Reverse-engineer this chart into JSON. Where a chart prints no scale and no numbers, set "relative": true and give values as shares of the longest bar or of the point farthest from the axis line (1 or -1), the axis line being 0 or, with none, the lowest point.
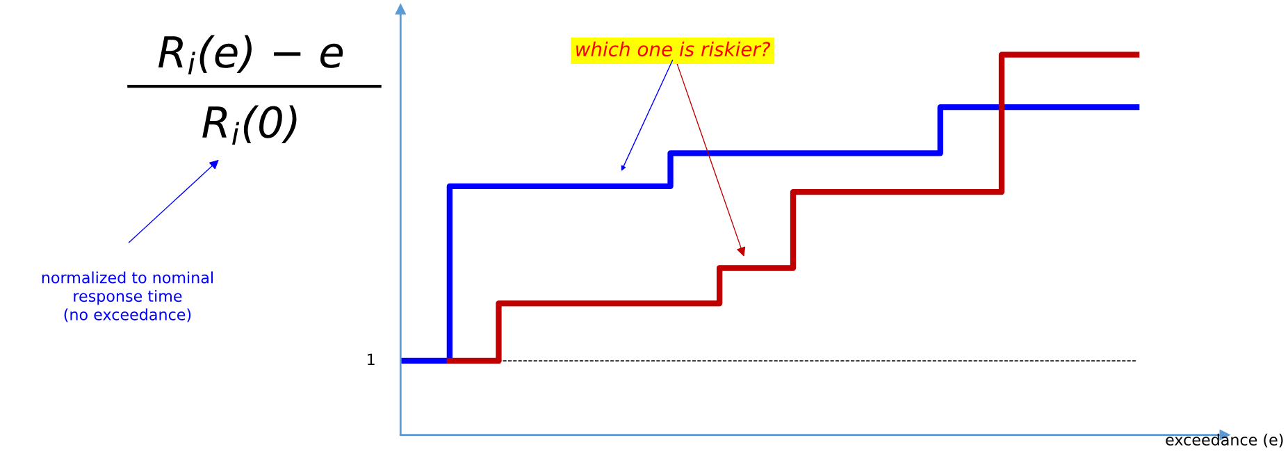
{
  "chart_data": {
    "type": "step",
    "relative": true,
    "ylabel": "R$_{i}$(e) − e\nR$_{i}$(0)",
    "xlabel": "exceedance (e)",
    "categories": [
      null,
      null,
      null,
      null,
      null,
      null,
      null,
      null,
      null,
      null,
      null,
      null,
      null,
      null,
      null,
      null,
      null,
      null,
      null,
      null,
      null,
      null,
      null,
      null,
      null,
      null,
      null,
      null,
      null,
      null,
      null,
      null,
      null,
      null,
      null,
      null,
      null,
      null,
      null,
      null,
      null,
      null,
      null,
      null,
      null,
      null,
      null,
      null,
      null,
      null,
      null,
      null,
      null,
      null,
      null,
      null,
      null,
      null,
      null,
      null,
      null
    ],
    "series": [
      {
        "color": "#0000ff",
        "values": [
          0.195,
          0.195,
          0.195,
          0.195,
          0.654,
          0.654,
          0.654,
          0.654,
          0.654,
          0.654,
          0.654,
          0.654,
          0.654,
          0.654,
          0.654,
          0.654,
          0.654,
          0.654,
          0.654,
          0.654,
          0.654,
          0.654,
          0.741,
          0.741,
          0.741,
          0.741,
          0.741,
          0.741,
          0.741,
          0.741,
          0.741,
          0.741,
          0.741,
          0.741,
          0.741,
          0.741,
          0.741,
          0.741,
          0.741,
          0.741,
          0.741,
          0.741,
          0.741,
          0.741,
          0.862,
          0.862,
          0.862,
          0.862,
          0.862,
          0.862,
          0.862,
          0.862,
          0.862,
          0.862,
          0.862,
          0.862,
          0.862,
          0.862,
          0.862,
          0.862,
          0.862
        ]
      },
      {
        "color": "#c00000",
        "values": [
          null,
          null,
          null,
          null,
          0.195,
          0.195,
          0.195,
          0.195,
          0.346,
          0.346,
          0.346,
          0.346,
          0.346,
          0.346,
          0.346,
          0.346,
          0.346,
          0.346,
          0.346,
          0.346,
          0.346,
          0.346,
          0.346,
          0.346,
          0.346,
          0.346,
          0.439,
          0.439,
          0.439,
          0.439,
          0.439,
          0.439,
          0.639,
          0.639,
          0.639,
          0.639,
          0.639,
          0.639,
          0.639,
          0.639,
          0.639,
          0.639,
          0.639,
          0.639,
          0.639,
          0.639,
          0.639,
          0.639,
          0.639,
          1.0,
          1.0,
          1.0,
          1.0,
          1.0,
          1.0,
          1.0,
          1.0,
          1.0,
          1.0,
          1.0,
          1.0
        ]
      }
    ],
    "ref_lines": [
      {
        "axis": "y",
        "value": 0.195,
        "color": "#000000",
        "line_style": "dashed"
      }
    ],
    "annotations": [
      "1",
      "which one is riskier?",
      "normalized to nominal\nresponse time\n(no exceedance)"
    ]
  }
}
